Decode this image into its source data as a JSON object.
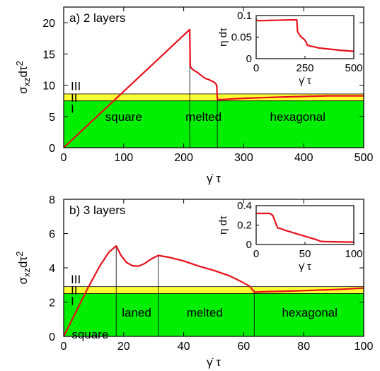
{
  "chart_data": [
    {
      "panel": "a",
      "type": "line",
      "title": "a)  2 layers",
      "xlabel": "γ̇ τ",
      "ylabel": "σ",
      "ylabel_sub": "xz",
      "ylabel_rest": "dτ",
      "ylabel_sup": "2",
      "xlim": [
        0,
        500
      ],
      "ylim": [
        0,
        22.5
      ],
      "xticks": [
        "0",
        "100",
        "200",
        "300",
        "400",
        "500"
      ],
      "xtick_values": [
        0,
        100,
        200,
        300,
        400,
        500
      ],
      "yticks": [
        "0",
        "5",
        "10",
        "15",
        "20"
      ],
      "ytick_values": [
        0,
        5,
        10,
        15,
        20
      ],
      "bands": [
        {
          "label": "I",
          "y0": 0,
          "y1": 7.5,
          "color": "#00ee00"
        },
        {
          "label": "II",
          "y0": 7.5,
          "y1": 8.6,
          "color": "#ffff33"
        },
        {
          "label": "III",
          "y0": 8.6,
          "y1": 22.5,
          "color": "#ffffff"
        }
      ],
      "band_label_y": [
        6.3,
        8.0,
        9.9
      ],
      "regions": [
        {
          "label": "square",
          "x": 100
        },
        {
          "label": "melted",
          "x": 233
        },
        {
          "label": "hexagonal",
          "x": 390
        }
      ],
      "region_label_y": 5.0,
      "dividers": [
        210,
        256
      ],
      "x": [
        0,
        210,
        211,
        214,
        218,
        222,
        226,
        230,
        234,
        238,
        242,
        246,
        250,
        253,
        255,
        256,
        258,
        265,
        280,
        300,
        330,
        360,
        400,
        440,
        470,
        500
      ],
      "y": [
        0,
        18.9,
        13.0,
        12.6,
        12.3,
        12.1,
        11.8,
        11.5,
        11.2,
        11.0,
        10.9,
        10.7,
        10.5,
        10.3,
        10.0,
        7.8,
        7.7,
        7.7,
        7.8,
        7.9,
        8.0,
        8.1,
        8.2,
        8.3,
        8.3,
        8.3
      ],
      "inset": {
        "ylabel": "η dτ",
        "xlabel": "γ̇ τ",
        "xlim": [
          0,
          500
        ],
        "ylim": [
          0,
          0.1
        ],
        "xticks": [
          "0",
          "250",
          "500"
        ],
        "xtick_values": [
          0,
          250,
          500
        ],
        "yticks": [
          "0",
          "0.05",
          "0.1"
        ],
        "ytick_values": [
          0,
          0.05,
          0.1
        ],
        "x": [
          0,
          10,
          100,
          180,
          208,
          212,
          218,
          225,
          232,
          240,
          248,
          255,
          262,
          280,
          320,
          380,
          440,
          500
        ],
        "y": [
          0.09,
          0.088,
          0.089,
          0.09,
          0.09,
          0.063,
          0.058,
          0.053,
          0.05,
          0.047,
          0.044,
          0.039,
          0.031,
          0.029,
          0.025,
          0.022,
          0.019,
          0.017
        ]
      }
    },
    {
      "panel": "b",
      "type": "line",
      "title": "b)  3 layers",
      "xlabel": "γ̇ τ",
      "ylabel": "σ",
      "ylabel_sub": "xz",
      "ylabel_rest": "dτ",
      "ylabel_sup": "2",
      "xlim": [
        0,
        100
      ],
      "ylim": [
        0,
        8
      ],
      "xticks": [
        "0",
        "20",
        "40",
        "60",
        "80",
        "100"
      ],
      "xtick_values": [
        0,
        20,
        40,
        60,
        80,
        100
      ],
      "yticks": [
        "0",
        "2",
        "4",
        "6",
        "8"
      ],
      "ytick_values": [
        0,
        2,
        4,
        6,
        8
      ],
      "bands": [
        {
          "label": "I",
          "y0": 0,
          "y1": 2.5,
          "color": "#00ee00"
        },
        {
          "label": "II",
          "y0": 2.5,
          "y1": 2.9,
          "color": "#ffff33"
        },
        {
          "label": "III",
          "y0": 2.9,
          "y1": 8,
          "color": "#ffffff"
        }
      ],
      "band_label_y": [
        2.08,
        2.7,
        3.35
      ],
      "regions": [
        {
          "label": "square",
          "x": 8.8,
          "y": 0.12
        },
        {
          "label": "laned",
          "x": 24.3,
          "y": 1.4
        },
        {
          "label": "melted",
          "x": 47,
          "y": 1.4
        },
        {
          "label": "hexagonal",
          "x": 82,
          "y": 1.4
        }
      ],
      "dividers": [
        17.5,
        31.5,
        63.5
      ],
      "x": [
        0,
        4,
        8,
        12,
        15,
        17.5,
        19,
        21,
        23,
        25,
        27,
        29,
        31.5,
        35,
        40,
        45,
        50,
        55,
        58,
        60,
        62,
        63,
        63.5,
        64,
        66,
        70,
        75,
        80,
        85,
        90,
        95,
        100
      ],
      "y": [
        0,
        1.4,
        2.8,
        4.1,
        4.9,
        5.28,
        4.75,
        4.3,
        4.12,
        4.1,
        4.25,
        4.5,
        4.72,
        4.62,
        4.4,
        4.1,
        3.85,
        3.55,
        3.3,
        3.12,
        2.92,
        2.7,
        2.58,
        2.58,
        2.6,
        2.62,
        2.64,
        2.67,
        2.7,
        2.73,
        2.77,
        2.82
      ],
      "inset": {
        "ylabel": "η dτ",
        "xlabel": "γ̇ τ",
        "xlim": [
          0,
          100
        ],
        "ylim": [
          0,
          0.4
        ],
        "xticks": [
          "0",
          "50",
          "100"
        ],
        "xtick_values": [
          0,
          50,
          100
        ],
        "yticks": [
          "0",
          "0.2",
          "0.4"
        ],
        "ytick_values": [
          0,
          0.2,
          0.4
        ],
        "x": [
          0,
          5,
          10,
          14,
          17,
          20,
          22,
          25,
          30,
          35,
          40,
          45,
          50,
          55,
          60,
          63,
          66,
          70,
          80,
          90,
          100
        ],
        "y": [
          0.32,
          0.32,
          0.32,
          0.32,
          0.3,
          0.22,
          0.17,
          0.165,
          0.145,
          0.13,
          0.115,
          0.1,
          0.085,
          0.07,
          0.055,
          0.045,
          0.033,
          0.03,
          0.028,
          0.026,
          0.025
        ]
      }
    }
  ]
}
